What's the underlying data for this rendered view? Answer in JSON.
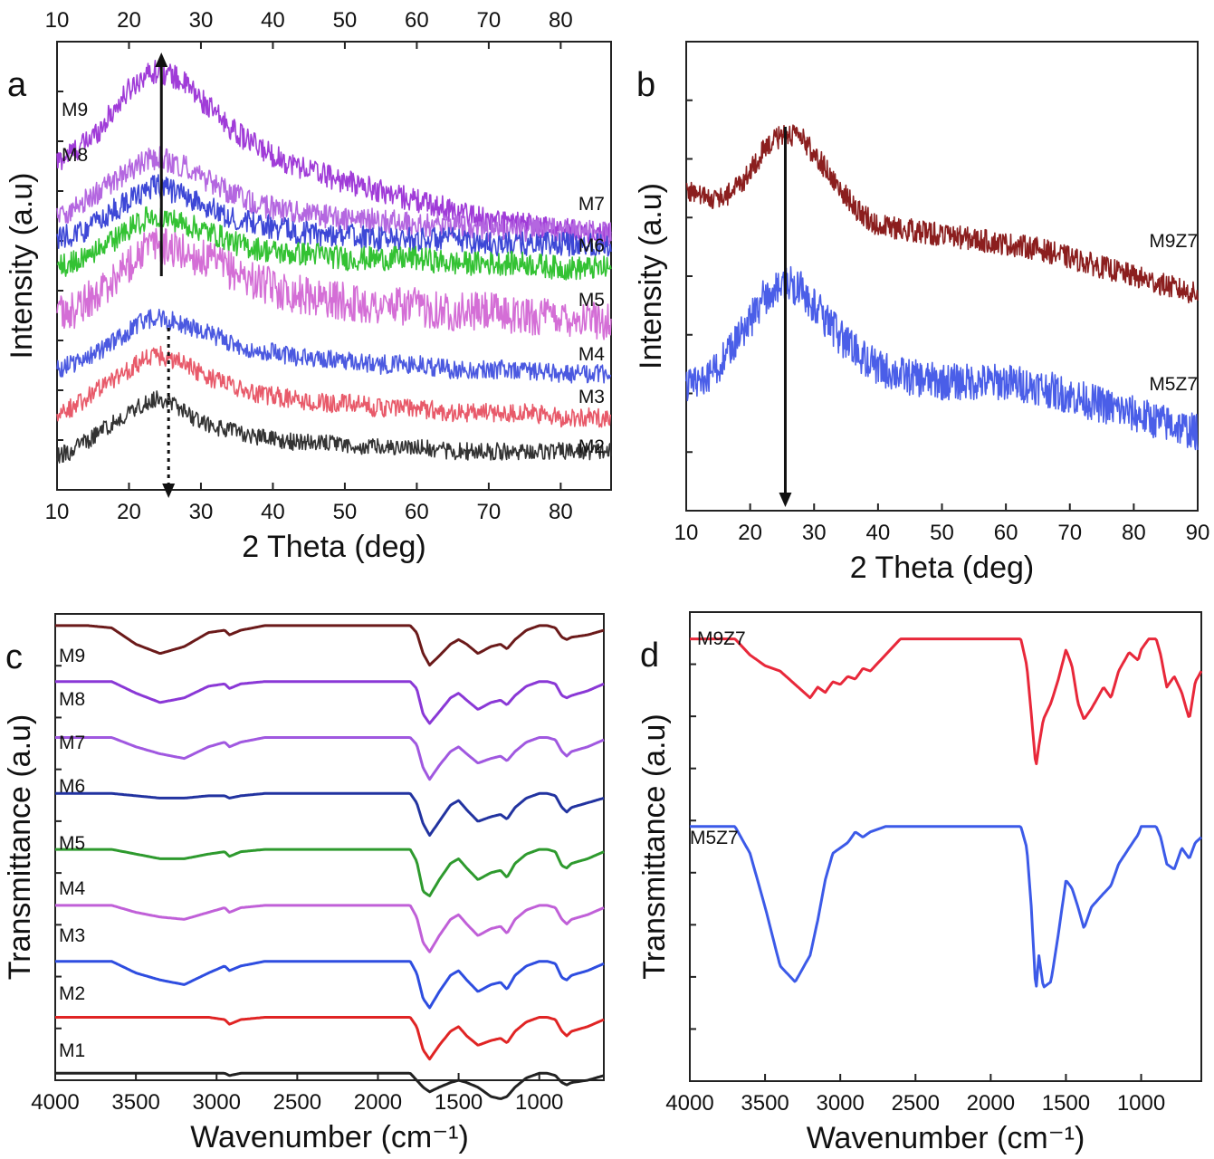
{
  "chart_data": [
    {
      "panel_label": "a",
      "type": "line",
      "xlabel": "2 Theta (deg)",
      "ylabel": "Intensity (a.u)",
      "xlim": [
        10,
        87
      ],
      "xticks": [
        10,
        20,
        30,
        40,
        50,
        60,
        70,
        80
      ],
      "top_axis_ticks": [
        10,
        20,
        30,
        40,
        50,
        60,
        70,
        80
      ],
      "y_tick_labels": "none",
      "annotations": [
        {
          "type": "solid arrow",
          "direction": "up",
          "x": 24.5
        },
        {
          "type": "dotted arrow",
          "direction": "down",
          "x": 25.5
        }
      ],
      "x": [
        10,
        12,
        14,
        16,
        18,
        20,
        22,
        24,
        26,
        28,
        30,
        32,
        35,
        38,
        42,
        46,
        50,
        55,
        60,
        65,
        70,
        75,
        80,
        87
      ],
      "series": [
        {
          "name": "M9",
          "color": "#a03cd8",
          "noise": 2.5,
          "values": [
            23,
            25,
            27,
            30,
            34,
            38,
            41,
            42,
            41,
            39,
            36,
            33,
            29,
            26,
            23,
            21,
            19,
            17,
            15,
            13,
            11,
            10,
            9,
            8
          ]
        },
        {
          "name": "M8",
          "color": "#b467e0",
          "noise": 2.5,
          "values": [
            12,
            13,
            15,
            17,
            19,
            21,
            23,
            24,
            23,
            22,
            20,
            18,
            16,
            14,
            13,
            12,
            11,
            11,
            10,
            10,
            9,
            9,
            9,
            8
          ]
        },
        {
          "name": "M7",
          "color": "#3d47d6",
          "noise": 2.5,
          "values": [
            7,
            8,
            9,
            11,
            13,
            15,
            17,
            18,
            17,
            16,
            14,
            13,
            11,
            10,
            9,
            8,
            8,
            7,
            7,
            7,
            6,
            6,
            6,
            6
          ]
        },
        {
          "name": "M6",
          "color": "#33c233",
          "noise": 2.5,
          "values": [
            1,
            2,
            3,
            5,
            7,
            9,
            11,
            12,
            11,
            10,
            9,
            8,
            6,
            5,
            4,
            4,
            3,
            3,
            3,
            2,
            2,
            2,
            1,
            1
          ]
        },
        {
          "name": "M5",
          "color": "#d46ed6",
          "noise": 4,
          "values": [
            -9,
            -8,
            -6,
            -4,
            -1,
            2,
            5,
            6,
            5,
            4,
            3,
            2,
            0,
            -2,
            -4,
            -5,
            -6,
            -7,
            -7,
            -8,
            -8,
            -9,
            -9,
            -10
          ]
        },
        {
          "name": "M4",
          "color": "#4b59e0",
          "noise": 2,
          "values": [
            -20,
            -19,
            -18,
            -16,
            -14,
            -12,
            -10,
            -9,
            -10,
            -11,
            -12,
            -13,
            -15,
            -16,
            -17,
            -18,
            -18,
            -19,
            -19,
            -20,
            -20,
            -20,
            -21,
            -21
          ]
        },
        {
          "name": "M3",
          "color": "#e85a6a",
          "noise": 2,
          "values": [
            -29,
            -28,
            -26,
            -24,
            -22,
            -20,
            -18,
            -17,
            -18,
            -19,
            -21,
            -22,
            -24,
            -25,
            -26,
            -27,
            -27,
            -28,
            -28,
            -29,
            -29,
            -29,
            -30,
            -30
          ]
        },
        {
          "name": "M2",
          "color": "#333333",
          "noise": 1.8,
          "values": [
            -38,
            -37,
            -35,
            -33,
            -31,
            -29,
            -27,
            -26,
            -27,
            -29,
            -31,
            -32,
            -33,
            -34,
            -35,
            -35,
            -36,
            -36,
            -36,
            -37,
            -37,
            -37,
            -37,
            -37
          ]
        }
      ]
    },
    {
      "panel_label": "b",
      "type": "line",
      "xlabel": "2 Theta (deg)",
      "ylabel": "Intensity (a.u)",
      "xlim": [
        10,
        90
      ],
      "xticks": [
        10,
        20,
        30,
        40,
        50,
        60,
        70,
        80,
        90
      ],
      "y_tick_labels": "none",
      "annotations": [
        {
          "type": "solid arrow",
          "direction": "down",
          "x": 25.5
        }
      ],
      "x": [
        10,
        13,
        16,
        19,
        22,
        25,
        28,
        31,
        34,
        37,
        40,
        45,
        50,
        55,
        60,
        65,
        70,
        75,
        80,
        85,
        90
      ],
      "series": [
        {
          "name": "M9Z7",
          "color": "#8b1e1e",
          "noise": 2.5,
          "values": [
            18,
            16,
            16,
            20,
            26,
            30,
            29,
            24,
            18,
            13,
            10,
            9,
            8,
            7,
            6,
            5,
            3,
            1,
            -1,
            -3,
            -5
          ]
        },
        {
          "name": "M5Z7",
          "color": "#4a5ee8",
          "noise": 4,
          "values": [
            -25,
            -23,
            -19,
            -13,
            -6,
            -2,
            -4,
            -9,
            -14,
            -18,
            -21,
            -23,
            -24,
            -24,
            -24,
            -25,
            -27,
            -29,
            -31,
            -33,
            -35
          ]
        }
      ]
    },
    {
      "panel_label": "c",
      "type": "line",
      "xlabel": "Wavenumber (cm⁻¹)",
      "ylabel": "Transmittance (a.u)",
      "xlim": [
        4000,
        600
      ],
      "xticks": [
        4000,
        3500,
        3000,
        2500,
        2000,
        1500,
        1000
      ],
      "y_tick_labels": "none",
      "x": [
        4000,
        3800,
        3650,
        3500,
        3350,
        3200,
        3050,
        2950,
        2920,
        2850,
        2700,
        2000,
        1800,
        1760,
        1720,
        1680,
        1620,
        1550,
        1500,
        1450,
        1380,
        1300,
        1240,
        1200,
        1150,
        1080,
        1000,
        950,
        900,
        860,
        830,
        800,
        700,
        600
      ],
      "series": [
        {
          "name": "M9",
          "color": "#6b1a1a",
          "values": [
            0,
            0,
            -1,
            -8,
            -12,
            -9,
            -3,
            -2,
            -4,
            -2,
            0,
            0,
            0,
            -3,
            -12,
            -17,
            -13,
            -8,
            -6,
            -8,
            -12,
            -9,
            -8,
            -10,
            -6,
            -2,
            0,
            0,
            -1,
            -5,
            -6,
            -5,
            -4,
            -2
          ]
        },
        {
          "name": "M8",
          "color": "#8a38d6",
          "values": [
            0,
            0,
            0,
            -5,
            -9,
            -7,
            -2,
            -1,
            -3,
            -1,
            0,
            0,
            0,
            -3,
            -14,
            -18,
            -13,
            -7,
            -5,
            -8,
            -12,
            -9,
            -8,
            -10,
            -6,
            -2,
            0,
            0,
            -1,
            -6,
            -7,
            -6,
            -4,
            -1
          ]
        },
        {
          "name": "M7",
          "color": "#a058e0",
          "values": [
            0,
            0,
            0,
            -4,
            -7,
            -9,
            -4,
            -2,
            -4,
            -2,
            0,
            0,
            0,
            -3,
            -13,
            -18,
            -12,
            -6,
            -4,
            -7,
            -11,
            -9,
            -8,
            -10,
            -6,
            -2,
            0,
            0,
            -1,
            -6,
            -8,
            -6,
            -4,
            -1
          ]
        },
        {
          "name": "M6",
          "color": "#2233a0",
          "values": [
            0,
            0,
            0,
            -1,
            -2,
            -2,
            -1,
            -1,
            -2,
            -1,
            0,
            0,
            0,
            -4,
            -13,
            -18,
            -12,
            -5,
            -3,
            -7,
            -12,
            -10,
            -9,
            -11,
            -6,
            -2,
            0,
            0,
            -1,
            -6,
            -8,
            -6,
            -4,
            -2
          ]
        },
        {
          "name": "M5",
          "color": "#2e9a2e",
          "values": [
            0,
            0,
            0,
            -2,
            -4,
            -4,
            -2,
            -1,
            -3,
            -1,
            0,
            0,
            0,
            -5,
            -18,
            -20,
            -13,
            -6,
            -4,
            -8,
            -13,
            -10,
            -9,
            -12,
            -6,
            -2,
            0,
            0,
            -1,
            -7,
            -8,
            -6,
            -4,
            -1
          ]
        },
        {
          "name": "M4",
          "color": "#c060d8",
          "values": [
            0,
            0,
            0,
            -3,
            -5,
            -6,
            -3,
            -1,
            -3,
            -1,
            0,
            0,
            0,
            -5,
            -16,
            -20,
            -13,
            -6,
            -4,
            -8,
            -13,
            -10,
            -9,
            -12,
            -6,
            -2,
            0,
            0,
            -1,
            -6,
            -8,
            -6,
            -4,
            -1
          ]
        },
        {
          "name": "M3",
          "color": "#2e4de0",
          "values": [
            0,
            0,
            0,
            -5,
            -8,
            -10,
            -5,
            -2,
            -4,
            -2,
            0,
            0,
            0,
            -5,
            -16,
            -20,
            -13,
            -6,
            -4,
            -8,
            -13,
            -10,
            -9,
            -12,
            -6,
            -2,
            0,
            0,
            -1,
            -7,
            -8,
            -6,
            -4,
            -1
          ]
        },
        {
          "name": "M2",
          "color": "#e02424",
          "values": [
            0,
            0,
            0,
            0,
            0,
            0,
            0,
            -1,
            -3,
            -1,
            0,
            0,
            0,
            -4,
            -14,
            -18,
            -12,
            -6,
            -4,
            -8,
            -12,
            -10,
            -9,
            -11,
            -6,
            -2,
            0,
            0,
            -1,
            -6,
            -8,
            -6,
            -4,
            -1
          ]
        },
        {
          "name": "M1",
          "color": "#222222",
          "values": [
            0,
            0,
            0,
            0,
            0,
            0,
            0,
            0,
            -1,
            0,
            0,
            0,
            0,
            -3,
            -6,
            -8,
            -6,
            -4,
            -3,
            -4,
            -6,
            -10,
            -11,
            -10,
            -6,
            -2,
            0,
            0,
            -1,
            -4,
            -5,
            -4,
            -3,
            -1
          ]
        }
      ]
    },
    {
      "panel_label": "d",
      "type": "line",
      "xlabel": "Wavenumber (cm⁻¹)",
      "ylabel": "Transmittance (a.u)",
      "xlim": [
        4000,
        600
      ],
      "xticks": [
        4000,
        3500,
        3000,
        2500,
        2000,
        1500,
        1000
      ],
      "y_tick_labels": "none",
      "x": [
        4000,
        3800,
        3700,
        3600,
        3500,
        3400,
        3300,
        3200,
        3150,
        3100,
        3050,
        3000,
        2950,
        2900,
        2850,
        2800,
        2700,
        2600,
        2000,
        1800,
        1760,
        1730,
        1700,
        1680,
        1650,
        1600,
        1550,
        1500,
        1460,
        1420,
        1380,
        1330,
        1250,
        1200,
        1150,
        1080,
        1020,
        1000,
        950,
        900,
        870,
        830,
        780,
        730,
        680,
        640,
        600
      ],
      "series": [
        {
          "name": "M9Z7",
          "color": "#e8283a",
          "values": [
            0,
            0,
            0,
            -6,
            -10,
            -12,
            -17,
            -22,
            -18,
            -20,
            -16,
            -17,
            -14,
            -15,
            -11,
            -12,
            -6,
            0,
            0,
            0,
            -10,
            -28,
            -48,
            -40,
            -30,
            -24,
            -15,
            -4,
            -10,
            -24,
            -30,
            -26,
            -18,
            -22,
            -12,
            -5,
            -8,
            -4,
            0,
            0,
            -6,
            -18,
            -14,
            -20,
            -30,
            -16,
            -12
          ]
        },
        {
          "name": "M5Z7",
          "color": "#3c5ae8",
          "values": [
            0,
            0,
            0,
            -10,
            -30,
            -52,
            -58,
            -48,
            -35,
            -20,
            -10,
            -8,
            -6,
            -2,
            -4,
            -2,
            0,
            0,
            0,
            0,
            -8,
            -30,
            -62,
            -48,
            -60,
            -58,
            -40,
            -20,
            -23,
            -30,
            -38,
            -30,
            -25,
            -22,
            -14,
            -8,
            -3,
            0,
            0,
            0,
            -4,
            -14,
            -16,
            -8,
            -12,
            -6,
            -4
          ]
        }
      ]
    }
  ]
}
